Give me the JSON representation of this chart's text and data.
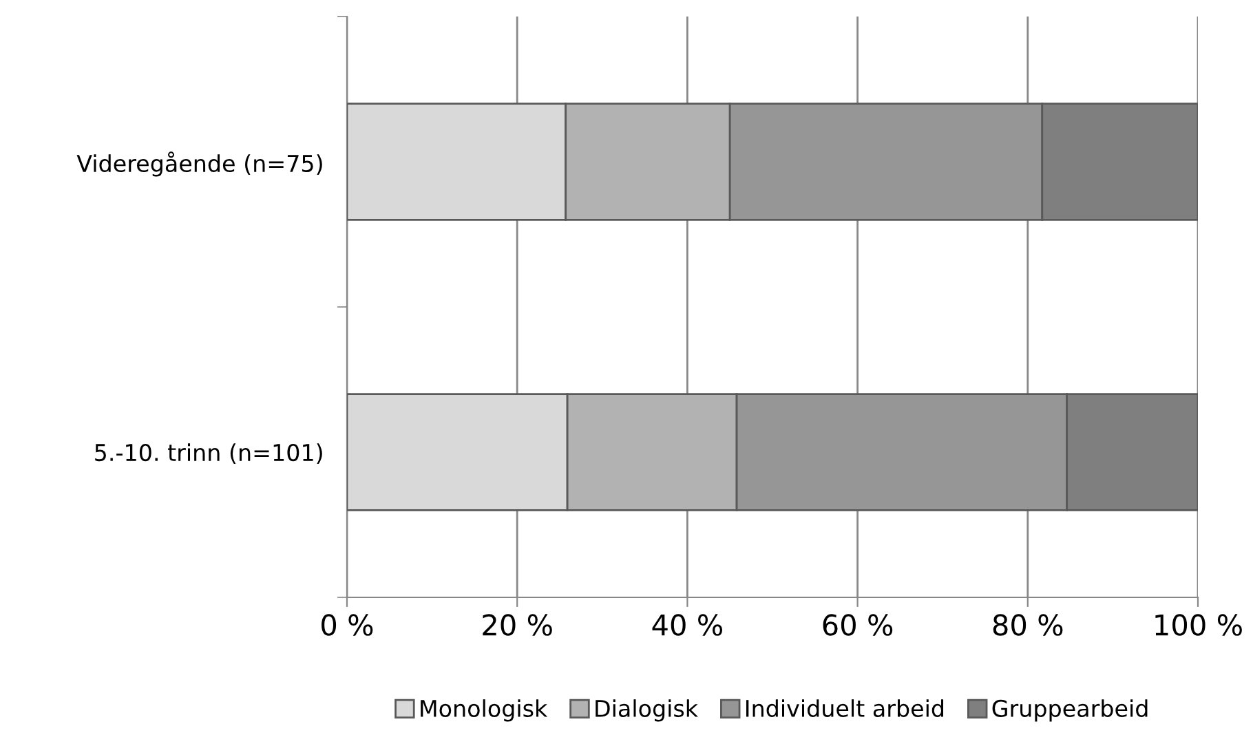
{
  "chart_data": {
    "type": "bar",
    "orientation": "horizontal",
    "stacked": true,
    "categories": [
      "Videregående (n=75)",
      "5.-10. trinn (n=101)"
    ],
    "series": [
      {
        "name": "Monologisk",
        "color": "#d9d9d9",
        "values": [
          25.7,
          25.9
        ]
      },
      {
        "name": "Dialogisk",
        "color": "#b2b2b2",
        "values": [
          19.3,
          19.9
        ]
      },
      {
        "name": "Individuelt arbeid",
        "color": "#969696",
        "values": [
          36.7,
          38.8
        ]
      },
      {
        "name": "Gruppearbeid",
        "color": "#7f7f7f",
        "values": [
          18.3,
          15.4
        ]
      }
    ],
    "xlim": [
      0,
      100
    ],
    "xticks": [
      {
        "value": 0,
        "label": "0 %"
      },
      {
        "value": 20,
        "label": "20 %"
      },
      {
        "value": 40,
        "label": "40 %"
      },
      {
        "value": 60,
        "label": "60 %"
      },
      {
        "value": 80,
        "label": "80 %"
      },
      {
        "value": 100,
        "label": "100 %"
      }
    ],
    "grid": "x",
    "legend": "bottom"
  }
}
